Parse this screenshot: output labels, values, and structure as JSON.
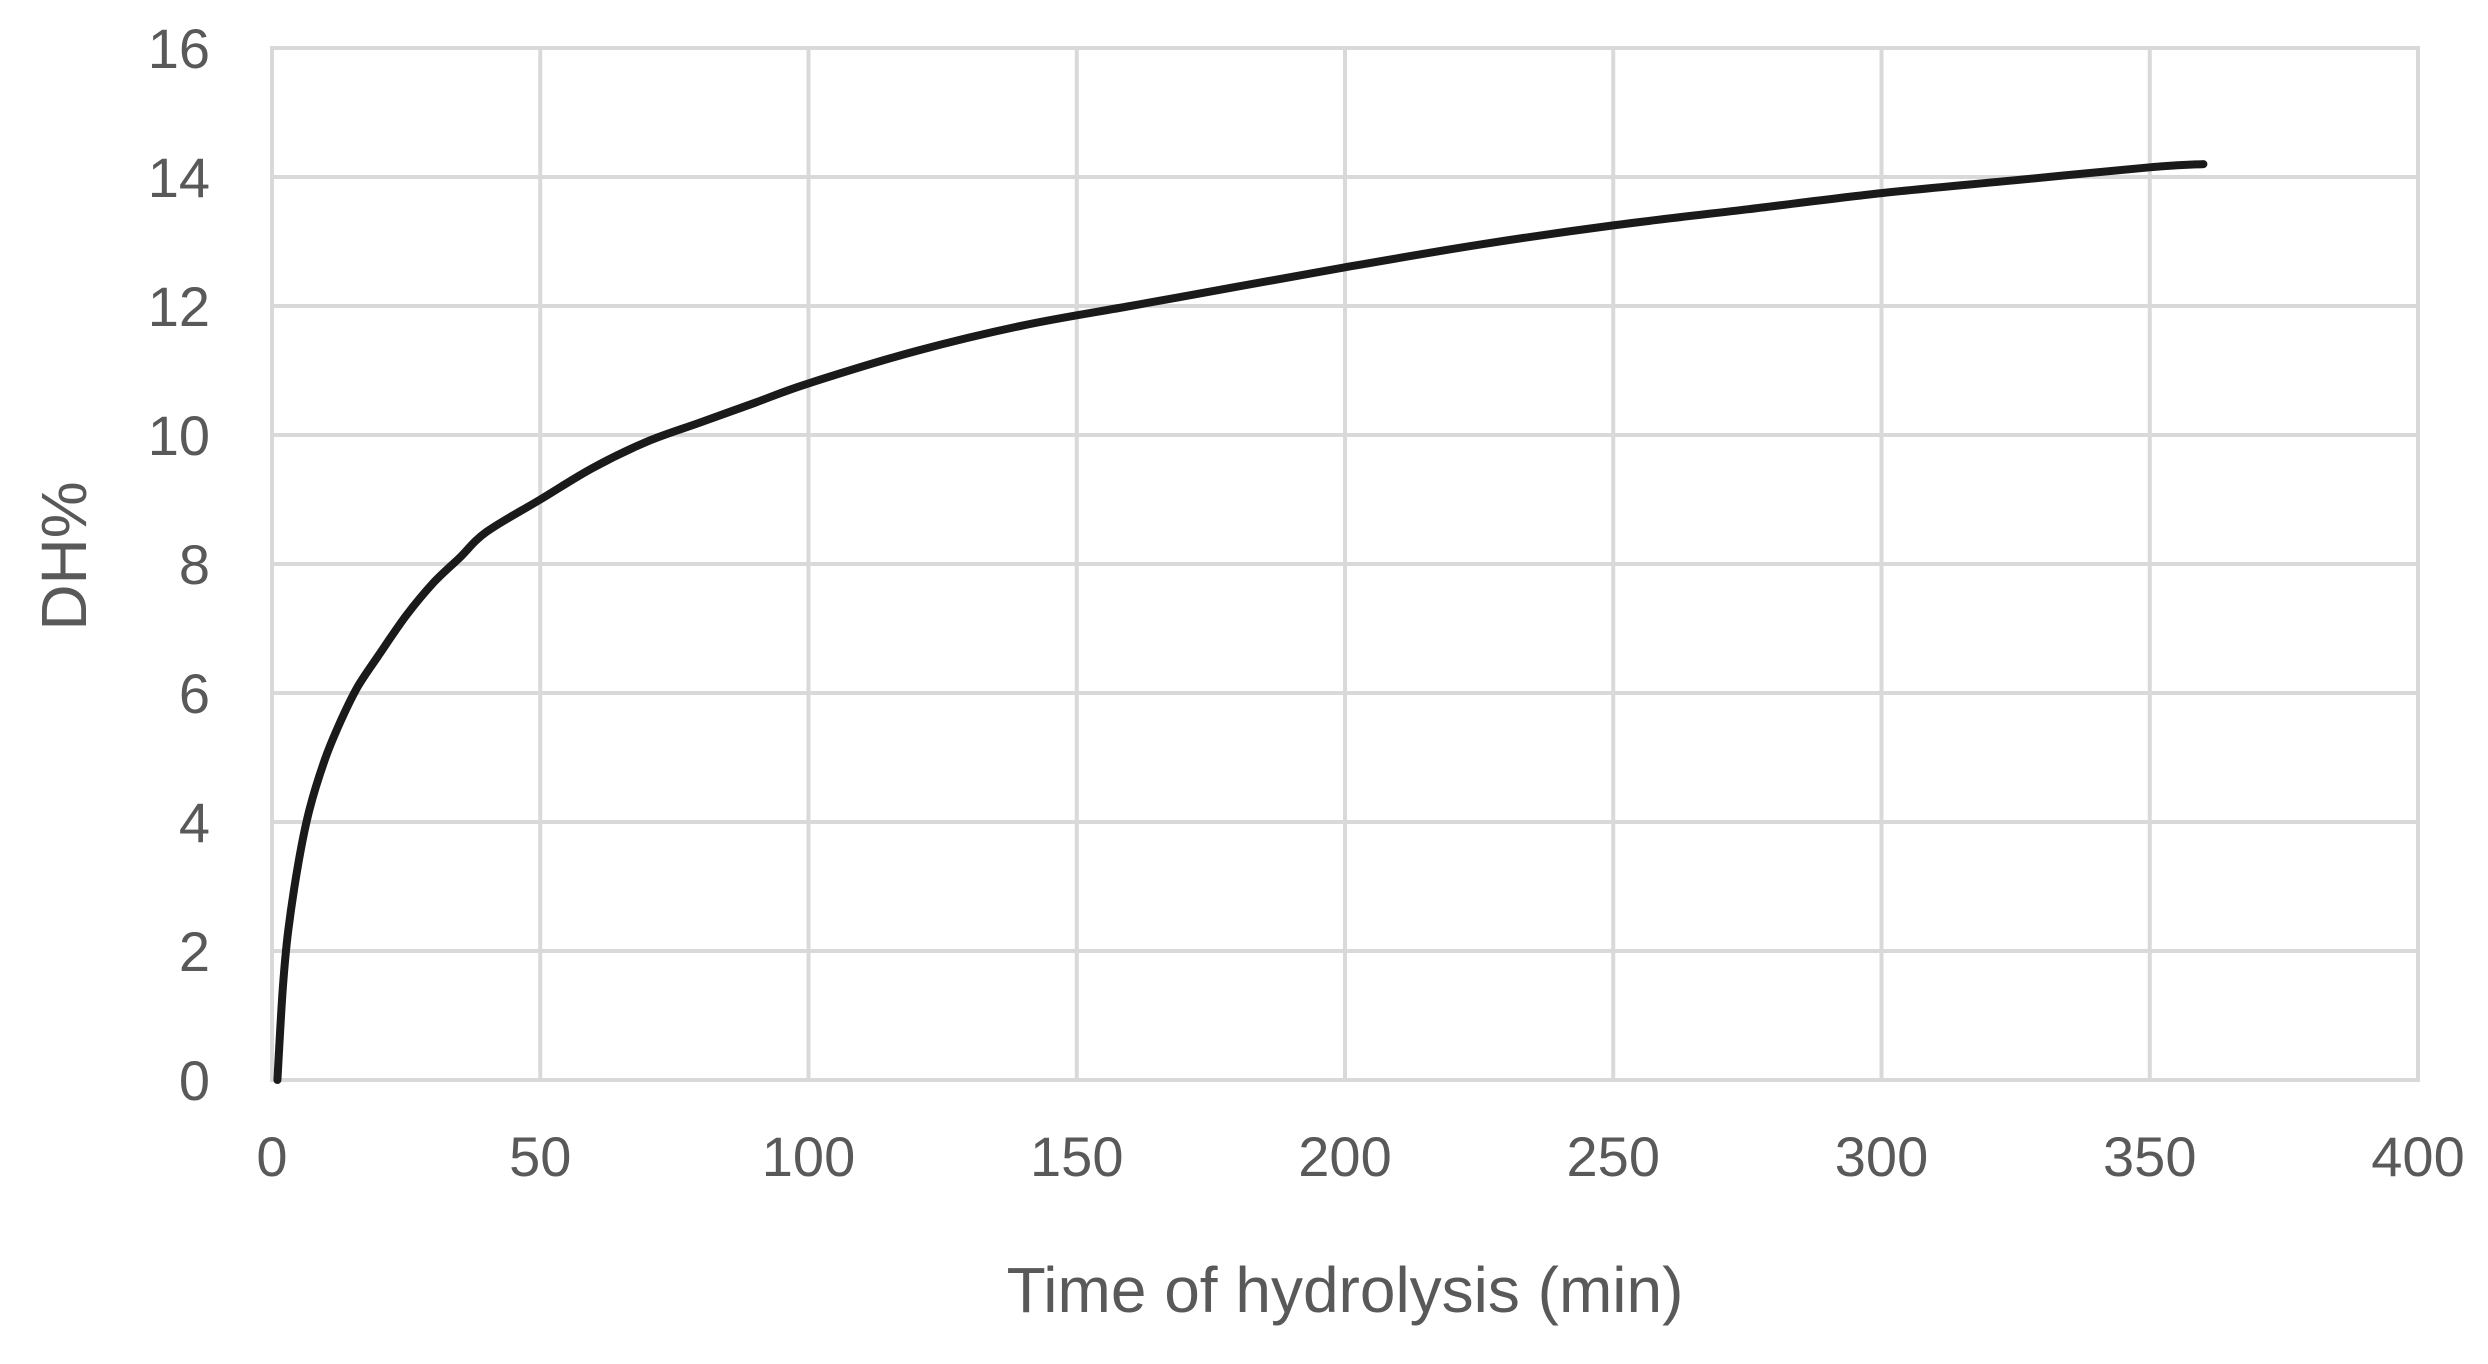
{
  "chart_data": {
    "type": "line",
    "xlabel": "Time of hydrolysis (min)",
    "ylabel": "DH%",
    "xlim": [
      0,
      400
    ],
    "ylim": [
      0,
      16
    ],
    "xticks": [
      "0",
      "50",
      "100",
      "150",
      "200",
      "250",
      "300",
      "350",
      "400"
    ],
    "yticks": [
      "0",
      "2",
      "4",
      "6",
      "8",
      "10",
      "12",
      "14",
      "16"
    ],
    "grid": true,
    "legend": "none",
    "line_color": "#1a1a1a",
    "x": [
      1,
      2,
      3,
      5,
      7,
      10,
      13,
      16,
      20,
      25,
      30,
      35,
      40,
      50,
      60,
      70,
      80,
      90,
      100,
      120,
      140,
      160,
      180,
      200,
      225,
      250,
      275,
      300,
      325,
      350,
      360
    ],
    "y": [
      0.0,
      1.4,
      2.3,
      3.4,
      4.2,
      5.0,
      5.6,
      6.1,
      6.6,
      7.2,
      7.7,
      8.1,
      8.5,
      9.0,
      9.5,
      9.9,
      10.2,
      10.5,
      10.8,
      11.3,
      11.7,
      12.0,
      12.3,
      12.6,
      12.95,
      13.25,
      13.5,
      13.75,
      13.95,
      14.15,
      14.2
    ]
  }
}
